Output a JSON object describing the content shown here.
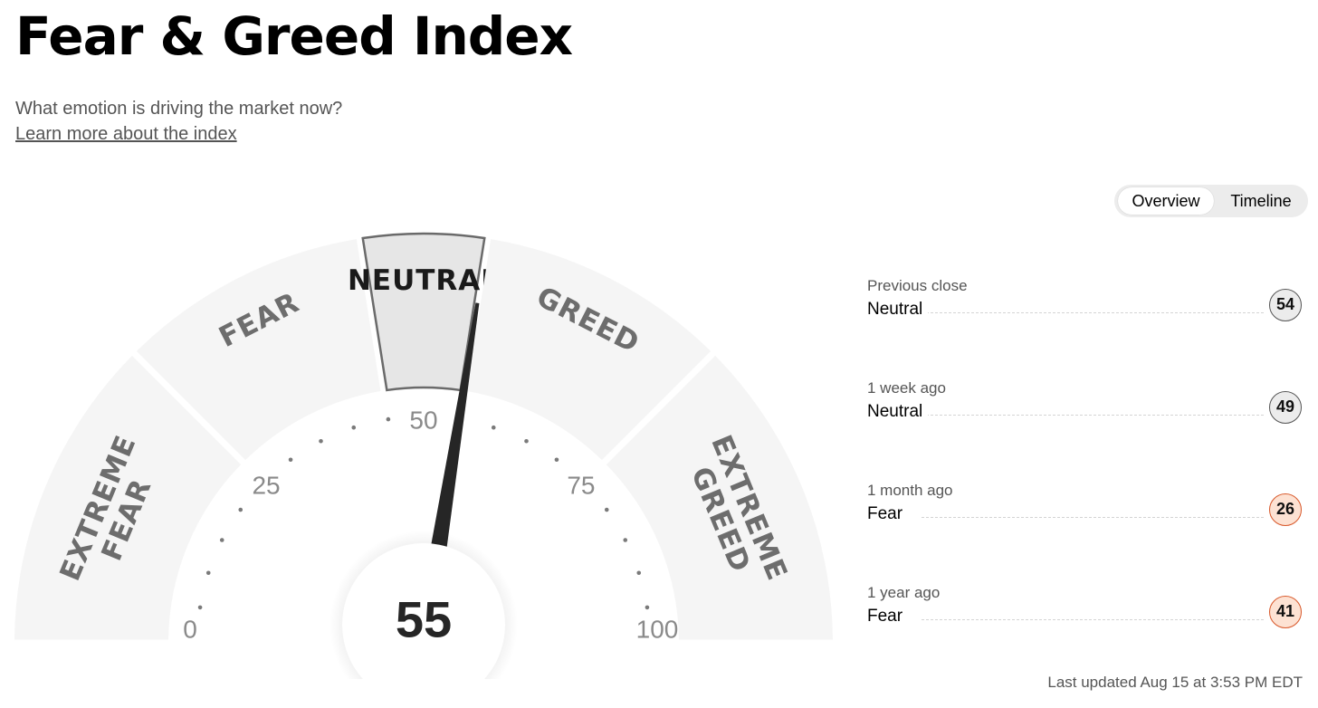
{
  "header": {
    "title": "Fear & Greed Index",
    "subtitle": "What emotion is driving the market now?",
    "learn_more": "Learn more about the index"
  },
  "view_toggle": {
    "options": [
      "Overview",
      "Timeline"
    ],
    "selected": "Overview"
  },
  "gauge": {
    "value": 55,
    "min": 0,
    "max": 100,
    "tick_labels": [
      "0",
      "25",
      "50",
      "75",
      "100"
    ],
    "zones": [
      {
        "lines": [
          "EXTREME",
          "FEAR"
        ],
        "from": 0,
        "to": 25
      },
      {
        "lines": [
          "FEAR"
        ],
        "from": 25,
        "to": 45
      },
      {
        "lines": [
          "NEUTRAL"
        ],
        "from": 45,
        "to": 55
      },
      {
        "lines": [
          "GREED"
        ],
        "from": 55,
        "to": 75
      },
      {
        "lines": [
          "EXTREME",
          "GREED"
        ],
        "from": 75,
        "to": 100
      }
    ],
    "active_zone": "NEUTRAL"
  },
  "history": [
    {
      "label": "Previous close",
      "rating": "Neutral",
      "value": "54",
      "style": "neutral"
    },
    {
      "label": "1 week ago",
      "rating": "Neutral",
      "value": "49",
      "style": "neutral"
    },
    {
      "label": "1 month ago",
      "rating": "Fear",
      "value": "26",
      "style": "fear"
    },
    {
      "label": "1 year ago",
      "rating": "Fear",
      "value": "41",
      "style": "fear"
    }
  ],
  "last_updated": "Last updated Aug 15 at 3:53 PM EDT",
  "colors": {
    "zone_fill": "#f5f5f5",
    "zone_active": "#e6e6e6",
    "zone_active_border": "#6a6a6a",
    "zone_text": "#6d6d6d",
    "needle": "#262626",
    "fear_badge": "#fde2d3",
    "fear_border": "#d8582a",
    "neutral_badge": "#ececec"
  }
}
